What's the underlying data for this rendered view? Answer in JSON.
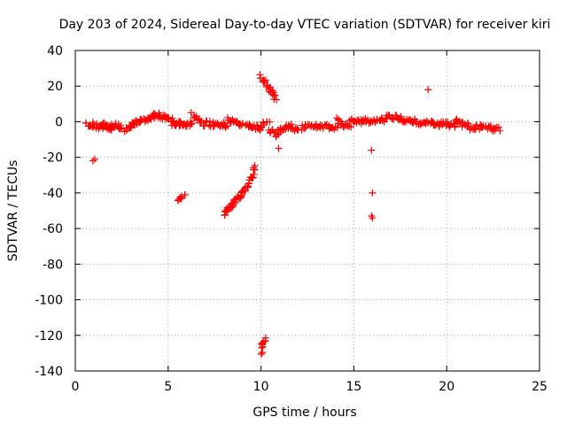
{
  "chart_data": {
    "type": "scatter",
    "title": "Day 203 of 2024, Sidereal Day-to-day VTEC variation (SDTVAR) for receiver kiri",
    "xlabel": "GPS time / hours",
    "ylabel": "SDTVAR / TECUs",
    "xlim": [
      0,
      25
    ],
    "ylim": [
      -140,
      40
    ],
    "xticks": [
      0,
      5,
      10,
      15,
      20,
      25
    ],
    "yticks": [
      -140,
      -120,
      -100,
      -80,
      -60,
      -40,
      -20,
      0,
      20,
      40
    ],
    "grid": true,
    "marker": "plus",
    "color": "#ff0000",
    "segments": [
      {
        "x": [
          0.6,
          1.5
        ],
        "y": [
          -1,
          -3
        ],
        "n": 22
      },
      {
        "x": [
          1.5,
          2.0
        ],
        "y": [
          -1,
          -4
        ],
        "n": 22
      },
      {
        "x": [
          2.0,
          2.5
        ],
        "y": [
          -2,
          -3
        ],
        "n": 12
      },
      {
        "x": [
          2.7,
          3.1
        ],
        "y": [
          -5,
          -2
        ],
        "n": 10
      },
      {
        "x": [
          3.1,
          4.3
        ],
        "y": [
          -1,
          3
        ],
        "n": 30
      },
      {
        "x": [
          4.3,
          5.2
        ],
        "y": [
          4,
          1
        ],
        "n": 20
      },
      {
        "x": [
          5.2,
          6.3
        ],
        "y": [
          -1,
          -1
        ],
        "n": 26
      },
      {
        "x": [
          6.3,
          7.0
        ],
        "y": [
          4,
          -2
        ],
        "n": 14
      },
      {
        "x": [
          7.0,
          8.2
        ],
        "y": [
          -1,
          -2
        ],
        "n": 26
      },
      {
        "x": [
          8.2,
          9.0
        ],
        "y": [
          1,
          -2
        ],
        "n": 18
      },
      {
        "x": [
          9.2,
          10.0
        ],
        "y": [
          -1,
          -4
        ],
        "n": 18
      },
      {
        "x": [
          10.0,
          10.4
        ],
        "y": [
          -3,
          1
        ],
        "n": 8
      },
      {
        "x": [
          10.4,
          10.9
        ],
        "y": [
          -4,
          -8
        ],
        "n": 10
      },
      {
        "x": [
          10.9,
          11.6
        ],
        "y": [
          -6,
          -2
        ],
        "n": 16
      },
      {
        "x": [
          11.6,
          13.0
        ],
        "y": [
          -4,
          -2
        ],
        "n": 22
      },
      {
        "x": [
          13.0,
          14.1
        ],
        "y": [
          -3,
          -3
        ],
        "n": 20
      },
      {
        "x": [
          14.1,
          14.8
        ],
        "y": [
          1,
          -4
        ],
        "n": 16
      },
      {
        "x": [
          14.8,
          16.8
        ],
        "y": [
          0,
          1
        ],
        "n": 40
      },
      {
        "x": [
          16.8,
          17.6
        ],
        "y": [
          3,
          2
        ],
        "n": 18
      },
      {
        "x": [
          17.6,
          19.2
        ],
        "y": [
          1,
          -1
        ],
        "n": 32
      },
      {
        "x": [
          19.2,
          20.5
        ],
        "y": [
          -1,
          -2
        ],
        "n": 26
      },
      {
        "x": [
          20.5,
          21.5
        ],
        "y": [
          0,
          -4
        ],
        "n": 22
      },
      {
        "x": [
          21.5,
          22.8
        ],
        "y": [
          -3,
          -4
        ],
        "n": 26
      },
      {
        "x": [
          10.0,
          10.8
        ],
        "y": [
          25,
          13
        ],
        "n": 22
      },
      {
        "x": [
          8.0,
          9.3
        ],
        "y": [
          -52,
          -36
        ],
        "n": 40
      },
      {
        "x": [
          9.3,
          9.7
        ],
        "y": [
          -36,
          -26
        ],
        "n": 14
      },
      {
        "x": [
          5.5,
          5.9
        ],
        "y": [
          -44,
          -42
        ],
        "n": 8
      },
      {
        "x": [
          10.0,
          10.2
        ],
        "y": [
          -129,
          -122
        ],
        "n": 10
      }
    ],
    "points": [
      {
        "x": 0.95,
        "y": -22
      },
      {
        "x": 1.05,
        "y": -21
      },
      {
        "x": 19.0,
        "y": 18
      },
      {
        "x": 15.95,
        "y": -16
      },
      {
        "x": 16.0,
        "y": -40
      },
      {
        "x": 15.95,
        "y": -53
      },
      {
        "x": 16.0,
        "y": -54
      },
      {
        "x": 10.95,
        "y": -15
      }
    ]
  }
}
